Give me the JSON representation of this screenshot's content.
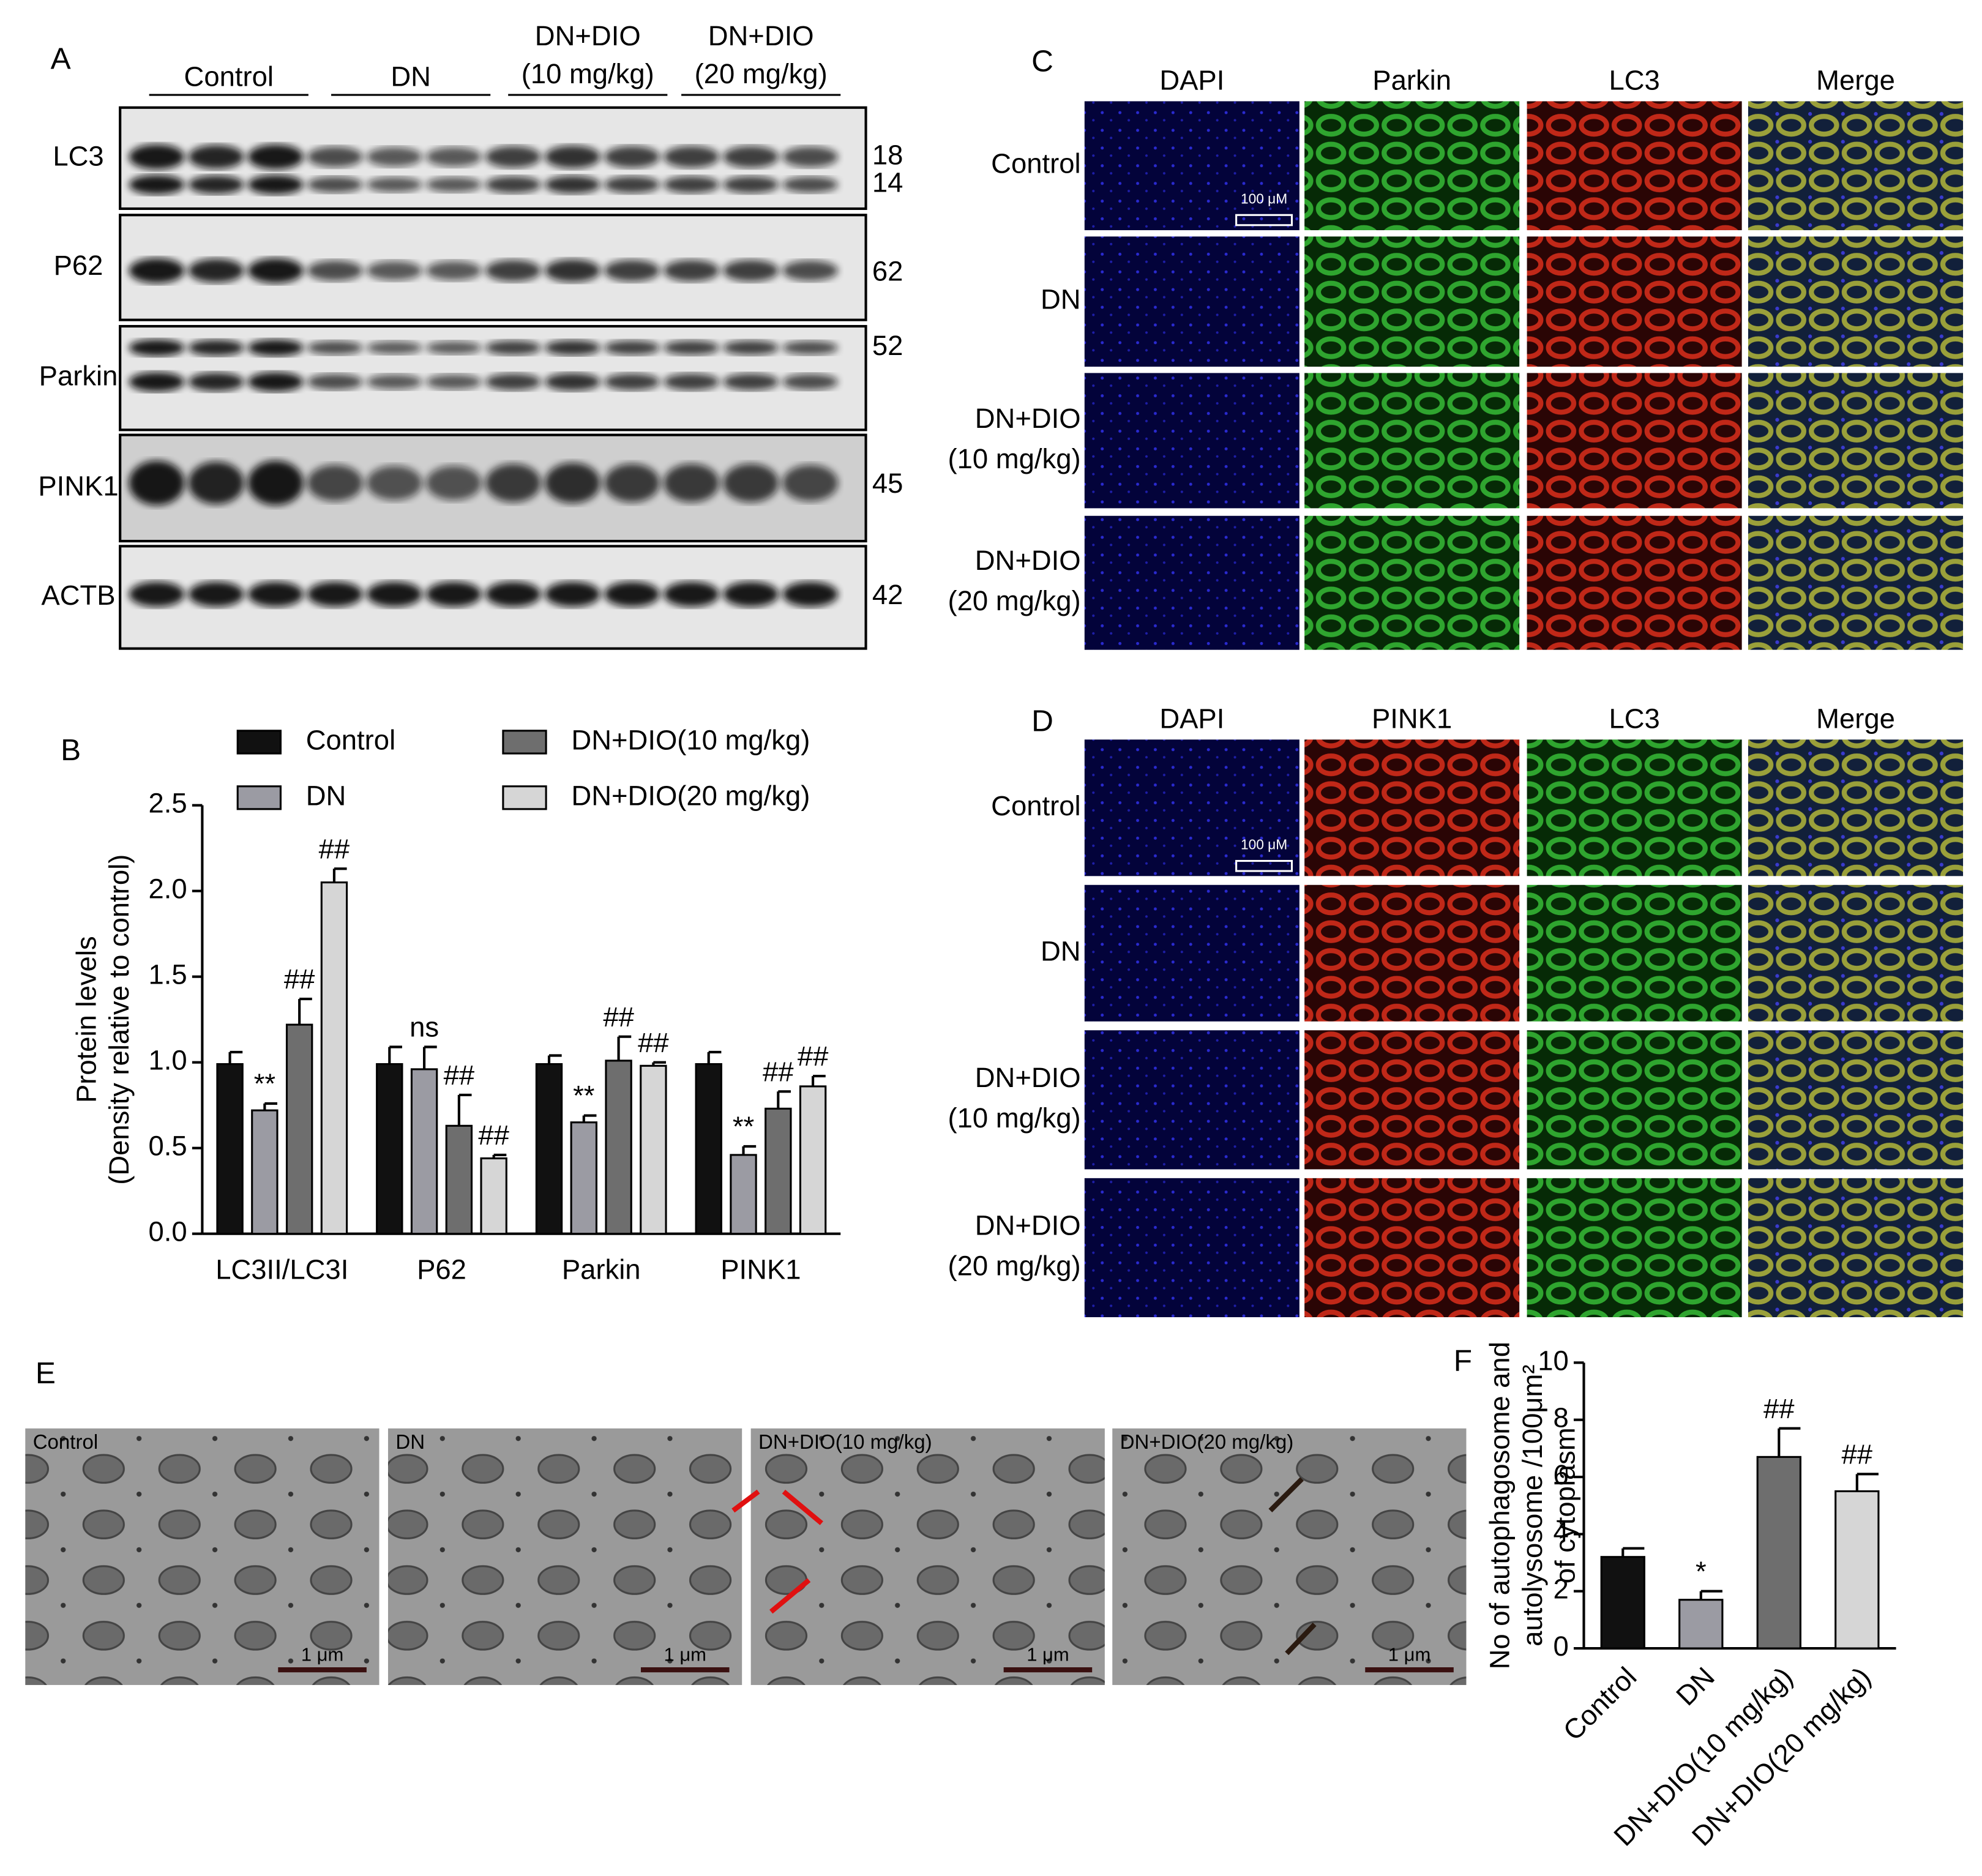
{
  "panel_labels": [
    "A",
    "B",
    "C",
    "D",
    "E",
    "F"
  ],
  "blot": {
    "groups": [
      [
        "Control"
      ],
      [
        "DN"
      ],
      [
        "DN+DIO",
        "(10 mg/kg)"
      ],
      [
        "DN+DIO",
        "(20 mg/kg)"
      ]
    ],
    "rows": [
      {
        "name": "LC3",
        "mw": [
          "18",
          "14"
        ]
      },
      {
        "name": "P62",
        "mw": [
          "62"
        ]
      },
      {
        "name": "Parkin",
        "mw": [
          "52"
        ]
      },
      {
        "name": "PINK1",
        "mw": [
          "45"
        ]
      },
      {
        "name": "ACTB",
        "mw": [
          "42"
        ]
      }
    ]
  },
  "if_c": {
    "columns": [
      "DAPI",
      "Parkin",
      "LC3",
      "Merge"
    ],
    "rows": [
      [
        "Control"
      ],
      [
        "DN"
      ],
      [
        "DN+DIO",
        "(10 mg/kg)"
      ],
      [
        "DN+DIO",
        "(20 mg/kg)"
      ]
    ],
    "scale_label": "100 μM"
  },
  "if_d": {
    "columns": [
      "DAPI",
      "PINK1",
      "LC3",
      "Merge"
    ],
    "rows": [
      [
        "Control"
      ],
      [
        "DN"
      ],
      [
        "DN+DIO",
        "(10 mg/kg)"
      ],
      [
        "DN+DIO",
        "(20 mg/kg)"
      ]
    ],
    "scale_label": "100 μM"
  },
  "em": {
    "images": [
      "Control",
      "DN",
      "DN+DIO(10 mg/kg)",
      "DN+DIO(20 mg/kg)"
    ],
    "scale_label": "1 μm"
  },
  "chart_data": [
    {
      "type": "bar",
      "ylabel": [
        "Protein levels",
        "(Density relative to control)"
      ],
      "categories": [
        "LC3II/LC3I",
        "P62",
        "Parkin",
        "PINK1"
      ],
      "series": [
        {
          "name": "Control",
          "color": "#111111",
          "values": [
            0.99,
            0.99,
            0.99,
            0.99
          ],
          "errors": [
            0.07,
            0.1,
            0.05,
            0.07
          ]
        },
        {
          "name": "DN",
          "color": "#9b9ba3",
          "values": [
            0.72,
            0.96,
            0.65,
            0.46
          ],
          "errors": [
            0.04,
            0.13,
            0.04,
            0.05
          ],
          "signif": [
            "**",
            "ns",
            "**",
            "**"
          ]
        },
        {
          "name": "DN+DIO(10 mg/kg)",
          "color": "#6e6e6e",
          "values": [
            1.22,
            0.63,
            1.01,
            0.73
          ],
          "errors": [
            0.15,
            0.18,
            0.14,
            0.1
          ],
          "signif": [
            "##",
            "##",
            "##",
            "##"
          ]
        },
        {
          "name": "DN+DIO(20 mg/kg)",
          "color": "#d6d6d6",
          "values": [
            2.05,
            0.44,
            0.98,
            0.86
          ],
          "errors": [
            0.08,
            0.02,
            0.02,
            0.06
          ],
          "signif": [
            "##",
            "##",
            "##",
            "##"
          ]
        }
      ],
      "ylim": [
        0,
        2.5
      ],
      "yticks": [
        {
          "value": 0,
          "label": "0.0"
        },
        0.5,
        {
          "value": 1,
          "label": "1.0"
        },
        1.5,
        {
          "value": 2,
          "label": "2.0"
        },
        2.5
      ],
      "legend": "top"
    },
    {
      "type": "bar",
      "ylabel": [
        "No of autophagosome and",
        "autolysosome /100μm²",
        "of cytoplasm"
      ],
      "categories": [
        "Control",
        "DN",
        "DN+DIO(10 mg/kg)",
        "DN+DIO(20 mg/kg)"
      ],
      "values": [
        3.2,
        1.7,
        6.7,
        5.5
      ],
      "errors": [
        0.3,
        0.3,
        1.0,
        0.6
      ],
      "signif": [
        null,
        "*",
        "##",
        "##"
      ],
      "colors": [
        "#111111",
        "#9b9ba3",
        "#6e6e6e",
        "#d6d6d6"
      ],
      "ylim": [
        0,
        10
      ],
      "yticks": [
        0,
        2,
        4,
        6,
        8,
        10
      ]
    }
  ]
}
